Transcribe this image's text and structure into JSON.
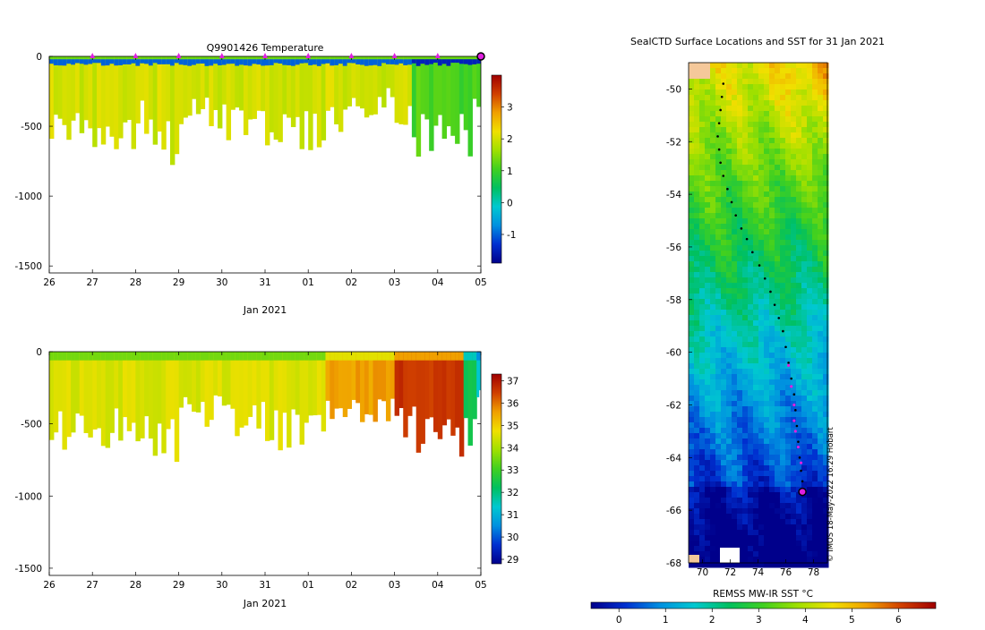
{
  "chart_data": [
    {
      "type": "heatmap",
      "title": "Q9901426  Temperature",
      "xlabel": "Jan 2021",
      "ylabel": "",
      "x_tick_labels": [
        "26",
        "27",
        "28",
        "29",
        "30",
        "31",
        "01",
        "02",
        "03",
        "04",
        "05"
      ],
      "y_ticks": [
        0,
        -500,
        -1000,
        -1500
      ],
      "ylim": [
        -1550,
        0
      ],
      "colorbar": {
        "ticks": [
          -1,
          0,
          1,
          2,
          3
        ],
        "range": [
          -1.9,
          4.0
        ],
        "colors": [
          "#00008b",
          "#0030d0",
          "#0090e0",
          "#00c8d0",
          "#00c060",
          "#40d020",
          "#a0e000",
          "#f0e000",
          "#f0a000",
          "#d04000",
          "#a00000"
        ]
      },
      "profiles": [
        {
          "day": 0.0,
          "depth": 700,
          "temp": 2.0
        },
        {
          "day": 0.4,
          "depth": 610,
          "temp": 2.0
        },
        {
          "day": 1.0,
          "depth": 700,
          "temp": 2.0
        },
        {
          "day": 2.0,
          "depth": 560,
          "temp": 2.0
        },
        {
          "day": 2.2,
          "depth": 780,
          "temp": 2.0
        },
        {
          "day": 3.0,
          "depth": 520,
          "temp": 2.0
        },
        {
          "day": 4.0,
          "depth": 620,
          "temp": 2.0
        },
        {
          "day": 5.0,
          "depth": 690,
          "temp": 2.0
        },
        {
          "day": 6.0,
          "depth": 680,
          "temp": 2.0
        },
        {
          "day": 6.5,
          "depth": 550,
          "temp": 2.0
        },
        {
          "day": 7.0,
          "depth": 500,
          "temp": 2.0
        },
        {
          "day": 7.8,
          "depth": 400,
          "temp": 2.0
        },
        {
          "day": 8.0,
          "depth": 500,
          "temp": 2.0
        },
        {
          "day": 8.4,
          "depth": 720,
          "temp": 1.1
        },
        {
          "day": 8.8,
          "depth": 760,
          "temp": 1.1
        },
        {
          "day": 9.2,
          "depth": 820,
          "temp": 1.1
        },
        {
          "day": 9.5,
          "depth": 740,
          "temp": 1.1
        },
        {
          "day": 9.8,
          "depth": 500,
          "temp": 1.1
        }
      ],
      "markers_days": [
        "27",
        "28",
        "29",
        "30",
        "31",
        "01",
        "02",
        "03",
        "04"
      ],
      "end_marker": "05"
    },
    {
      "type": "heatmap",
      "title": "",
      "xlabel": "Jan 2021",
      "ylabel": "",
      "x_tick_labels": [
        "26",
        "27",
        "28",
        "29",
        "30",
        "31",
        "01",
        "02",
        "03",
        "04",
        "05"
      ],
      "y_ticks": [
        0,
        -500,
        -1000,
        -1500
      ],
      "ylim": [
        -1550,
        0
      ],
      "colorbar": {
        "ticks": [
          29,
          30,
          31,
          32,
          33,
          34,
          35,
          36,
          37
        ],
        "range": [
          28.8,
          37.3
        ],
        "colors": [
          "#00008b",
          "#0030d0",
          "#0090e0",
          "#00c8d0",
          "#00c060",
          "#40d020",
          "#a0e000",
          "#f0e000",
          "#f0a000",
          "#d04000",
          "#a00000"
        ]
      },
      "profiles": [
        {
          "day": 0.0,
          "depth": 700,
          "value": 34.5
        },
        {
          "day": 1.0,
          "depth": 700,
          "value": 34.5
        },
        {
          "day": 2.2,
          "depth": 780,
          "value": 34.5
        },
        {
          "day": 3.0,
          "depth": 520,
          "value": 34.5
        },
        {
          "day": 4.0,
          "depth": 620,
          "value": 34.5
        },
        {
          "day": 5.0,
          "depth": 690,
          "value": 34.5
        },
        {
          "day": 6.0,
          "depth": 680,
          "value": 34.5
        },
        {
          "day": 6.4,
          "depth": 480,
          "value": 35.6
        },
        {
          "day": 7.0,
          "depth": 500,
          "value": 35.6
        },
        {
          "day": 7.8,
          "depth": 500,
          "value": 35.6
        },
        {
          "day": 8.0,
          "depth": 600,
          "value": 36.6
        },
        {
          "day": 8.5,
          "depth": 760,
          "value": 36.6
        },
        {
          "day": 9.0,
          "depth": 820,
          "value": 36.6
        },
        {
          "day": 9.4,
          "depth": 760,
          "value": 36.6
        },
        {
          "day": 9.6,
          "depth": 680,
          "value": 32.5
        },
        {
          "day": 9.9,
          "depth": 400,
          "value": 31.5
        }
      ]
    },
    {
      "type": "heatmap",
      "title": "SealCTD Surface Locations and SST for 31 Jan 2021",
      "xlabel": "REMSS MW-IR SST °C",
      "x_ticks": [
        70,
        72,
        74,
        76,
        78
      ],
      "y_ticks": [
        -50,
        -52,
        -54,
        -56,
        -58,
        -60,
        -62,
        -64,
        -66,
        -68
      ],
      "xlim": [
        69.0,
        79.0
      ],
      "ylim": [
        -68.0,
        -49.0
      ],
      "colorbar": {
        "ticks": [
          0,
          1,
          2,
          3,
          4,
          5,
          6
        ],
        "range": [
          -0.6,
          6.8
        ],
        "colors": [
          "#00008b",
          "#0030d0",
          "#0090e0",
          "#00c8d0",
          "#00c060",
          "#40d020",
          "#a0e000",
          "#f0e000",
          "#f0a000",
          "#d04000",
          "#a00000"
        ]
      },
      "track_black": [
        [
          71.5,
          -49.8
        ],
        [
          71.4,
          -50.3
        ],
        [
          71.3,
          -50.8
        ],
        [
          71.2,
          -51.3
        ],
        [
          71.1,
          -51.8
        ],
        [
          71.2,
          -52.3
        ],
        [
          71.3,
          -52.8
        ],
        [
          71.5,
          -53.3
        ],
        [
          71.8,
          -53.8
        ],
        [
          72.1,
          -54.3
        ],
        [
          72.4,
          -54.8
        ],
        [
          72.8,
          -55.3
        ],
        [
          73.2,
          -55.7
        ],
        [
          73.6,
          -56.2
        ],
        [
          74.1,
          -56.7
        ],
        [
          74.5,
          -57.2
        ],
        [
          74.9,
          -57.7
        ],
        [
          75.2,
          -58.2
        ],
        [
          75.5,
          -58.7
        ],
        [
          75.8,
          -59.2
        ],
        [
          76.0,
          -59.8
        ],
        [
          76.2,
          -60.4
        ],
        [
          76.4,
          -61.0
        ],
        [
          76.6,
          -61.6
        ],
        [
          76.7,
          -62.2
        ],
        [
          76.8,
          -62.8
        ],
        [
          76.9,
          -63.4
        ],
        [
          77.0,
          -64.0
        ],
        [
          77.1,
          -64.5
        ],
        [
          77.2,
          -64.9
        ]
      ],
      "track_magenta": [
        [
          76.2,
          -60.5
        ],
        [
          76.4,
          -61.3
        ],
        [
          76.6,
          -62.0
        ],
        [
          76.6,
          -62.6
        ],
        [
          76.7,
          -63.0
        ],
        [
          76.9,
          -63.6
        ],
        [
          77.1,
          -64.2
        ]
      ],
      "last_position": [
        77.2,
        -65.3
      ],
      "credit": "© IMOS 18-May-2022 16:29 Hobart"
    }
  ]
}
